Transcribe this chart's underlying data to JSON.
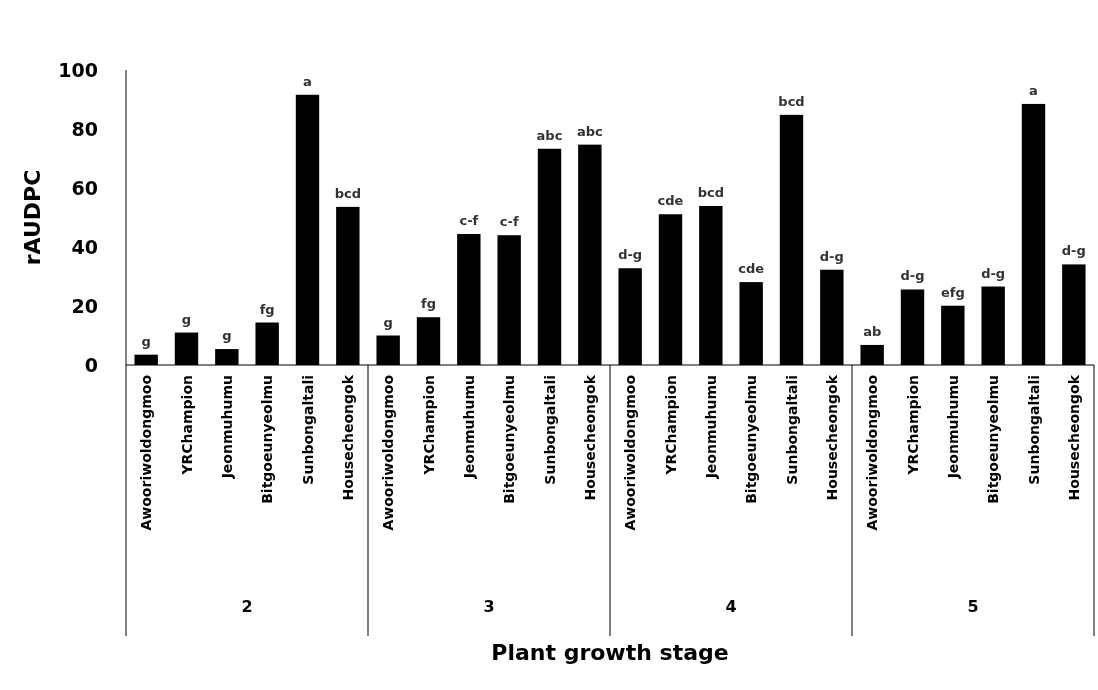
{
  "chart_data": {
    "type": "bar",
    "xlabel": "Plant growth stage",
    "ylabel": "rAUDPC",
    "categories": [
      "Awooriwoldongmoo",
      "YRChampion",
      "Jeonmuhumu",
      "Bitgoeunyeolmu",
      "Sunbongaltali",
      "Housecheongok",
      "Awooriwoldongmoo",
      "YRChampion",
      "Jeonmuhumu",
      "Bitgoeunyeolmu",
      "Sunbongaltali",
      "Housecheongok",
      "Awooriwoldongmoo",
      "YRChampion",
      "Jeonmuhumu",
      "Bitgoeunyeolmu",
      "Sunbongaltali",
      "Housecheongok",
      "Awooriwoldongmoo",
      "YRChampion",
      "Jeonmuhumu",
      "Bitgoeunyeolmu",
      "Sunbongaltali",
      "Housecheongok"
    ],
    "values": [
      3.5,
      11.0,
      5.4,
      14.4,
      91.6,
      53.6,
      10.0,
      16.2,
      44.4,
      44.0,
      73.3,
      74.7,
      32.8,
      51.1,
      53.9,
      28.1,
      84.8,
      32.3,
      6.8,
      25.6,
      20.1,
      26.6,
      88.5,
      34.1
    ],
    "value_labels": [
      "g",
      "g",
      "g",
      "fg",
      "a",
      "bcd",
      "g",
      "fg",
      "c-f",
      "c-f",
      "abc",
      "abc",
      "d-g",
      "cde",
      "bcd",
      "cde",
      "bcd",
      "d-g",
      "ab",
      "d-g",
      "efg",
      "d-g",
      "a",
      "d-g"
    ],
    "color": "#000000",
    "ylim": [
      0,
      100
    ],
    "yticks": [
      0,
      20,
      40,
      60,
      80,
      100
    ],
    "annotations": [
      "2",
      "3",
      "4",
      "5"
    ]
  }
}
